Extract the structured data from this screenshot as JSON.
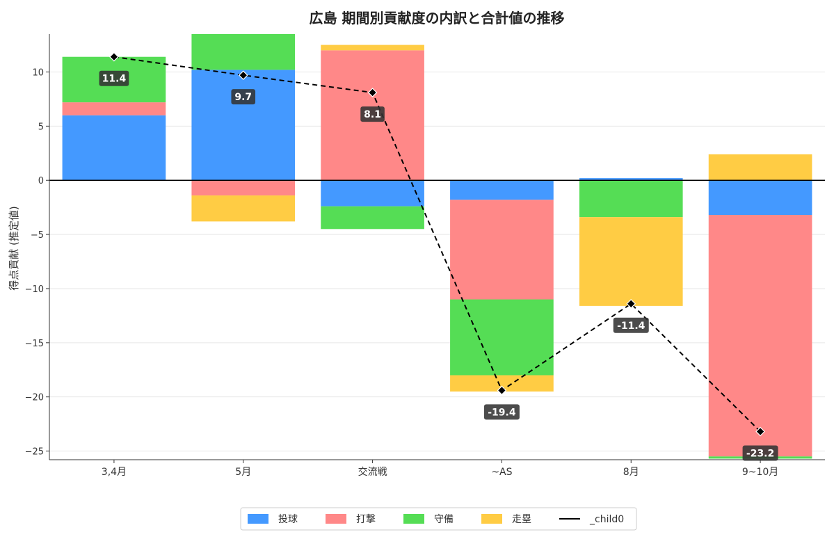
{
  "chart_data": {
    "type": "bar",
    "title": "広島 期間別貢献度の内訳と合計値の推移",
    "ylabel": "得点貢献 (推定値)",
    "xlabel": "",
    "categories": [
      "3,4月",
      "5月",
      "交流戦",
      "~AS",
      "8月",
      "9~10月"
    ],
    "ylim": [
      -25.8,
      13.5
    ],
    "yticks": [
      10,
      5,
      0,
      -5,
      -10,
      -15,
      -20,
      -25
    ],
    "ytick_labels": [
      "10",
      "5",
      "0",
      "−5",
      "−10",
      "−15",
      "−20",
      "−25"
    ],
    "grid": "horizontal",
    "zero_line": true,
    "legend_position": "bottom-center",
    "series": [
      {
        "name": "投球",
        "color": "#4499ff",
        "values": [
          6.0,
          10.2,
          -2.4,
          -1.8,
          0.2,
          -3.2
        ]
      },
      {
        "name": "打撃",
        "color": "#ff8888",
        "values": [
          1.2,
          -1.4,
          12.0,
          -9.2,
          0.0,
          -22.3
        ]
      },
      {
        "name": "守備",
        "color": "#55dd55",
        "values": [
          4.2,
          3.3,
          -2.1,
          -7.0,
          -3.4,
          -0.2
        ]
      },
      {
        "name": "走塁",
        "color": "#ffcc44",
        "values": [
          0.0,
          -2.4,
          0.5,
          -1.5,
          -8.2,
          2.4
        ]
      }
    ],
    "line": {
      "name": "_child0",
      "color": "#000000",
      "values": [
        11.4,
        9.7,
        8.1,
        -19.4,
        -11.4,
        -23.2
      ],
      "labels": [
        "11.4",
        "9.7",
        "8.1",
        "-19.4",
        "-11.4",
        "-23.2"
      ]
    }
  }
}
